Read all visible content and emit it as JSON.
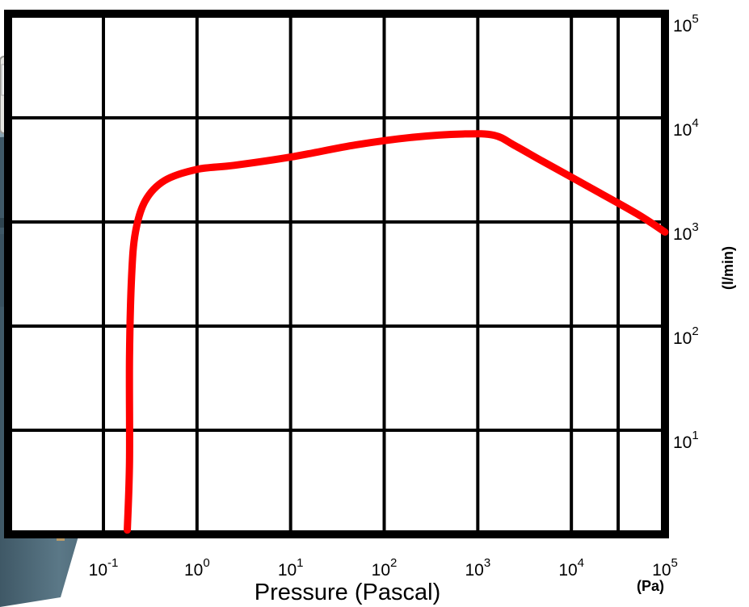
{
  "chart_data": {
    "type": "line",
    "x_scale": "log",
    "y_scale": "log",
    "xlim": [
      0.1,
      100000
    ],
    "ylim": [
      1,
      100000
    ],
    "x_ticks": [
      {
        "base": "10",
        "exp": "-1"
      },
      {
        "base": "10",
        "exp": "0"
      },
      {
        "base": "10",
        "exp": "1"
      },
      {
        "base": "10",
        "exp": "2"
      },
      {
        "base": "10",
        "exp": "3"
      },
      {
        "base": "10",
        "exp": "4"
      },
      {
        "base": "10",
        "exp": "5"
      }
    ],
    "y_ticks": [
      {
        "base": "10",
        "exp": "1"
      },
      {
        "base": "10",
        "exp": "2"
      },
      {
        "base": "10",
        "exp": "3"
      },
      {
        "base": "10",
        "exp": "4"
      },
      {
        "base": "10",
        "exp": "5"
      }
    ],
    "xlabel": "Pressure (Pascal)",
    "x_unit": "(Pa)",
    "ylabel": "(l/min)",
    "grid": true,
    "series": [
      {
        "color": "#ff0000",
        "x": [
          0.18,
          0.19,
          0.19,
          0.2,
          0.22,
          0.28,
          0.45,
          1,
          2.5,
          10,
          50,
          200,
          700,
          1500,
          2500,
          5000,
          15000,
          50000,
          100000
        ],
        "y": [
          1.1,
          5,
          50,
          300,
          800,
          1600,
          2500,
          3200,
          3500,
          4200,
          5500,
          6500,
          7000,
          6800,
          5400,
          3800,
          2200,
          1200,
          800
        ]
      }
    ]
  },
  "background_image": "vacuum-pump-photo"
}
